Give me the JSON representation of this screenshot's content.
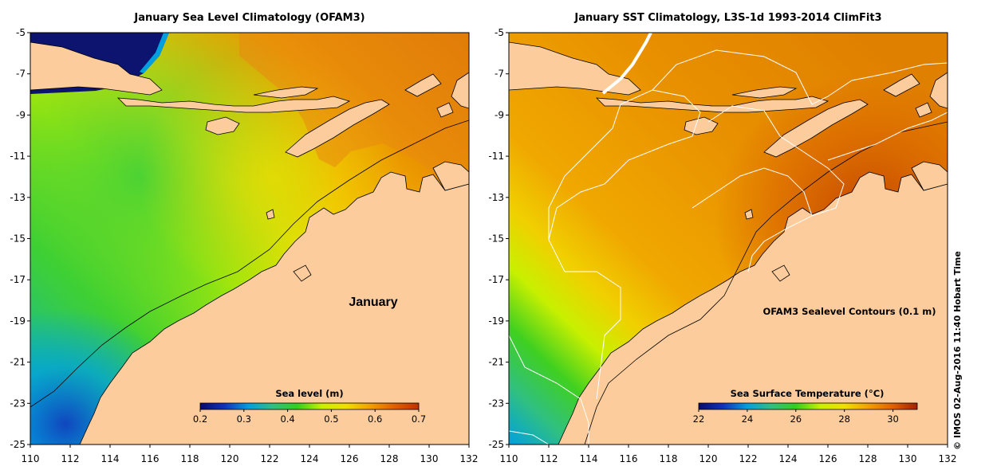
{
  "chart_data": [
    {
      "type": "heatmap",
      "title": "January Sea Level Climatology (OFAM3)",
      "x_ticks": [
        "110",
        "112",
        "114",
        "116",
        "118",
        "120",
        "122",
        "124",
        "126",
        "128",
        "130",
        "132"
      ],
      "y_ticks": [
        "-5",
        "-7",
        "-9",
        "-11",
        "-13",
        "-15",
        "-17",
        "-19",
        "-21",
        "-23",
        "-25"
      ],
      "xlim": [
        110,
        132
      ],
      "ylim": [
        -25,
        -5
      ],
      "annotation": "January",
      "colorbar": {
        "label": "Sea level (m)",
        "range": [
          0.2,
          0.7
        ],
        "ticks": [
          "0.2",
          "0.3",
          "0.4",
          "0.5",
          "0.6",
          "0.7"
        ],
        "colors": [
          "#0a0a6e",
          "#1030c0",
          "#00a0e0",
          "#30c080",
          "#30d020",
          "#c8f000",
          "#f0e000",
          "#f0a000",
          "#e06000",
          "#c03000"
        ]
      }
    },
    {
      "type": "heatmap",
      "title": "January SST Climatology, L3S-1d 1993-2014 ClimFit3",
      "x_ticks": [
        "110",
        "112",
        "114",
        "116",
        "118",
        "120",
        "122",
        "124",
        "126",
        "128",
        "130",
        "132"
      ],
      "y_ticks": [
        "-5",
        "-7",
        "-9",
        "-11",
        "-13",
        "-15",
        "-17",
        "-19",
        "-21",
        "-23",
        "-25"
      ],
      "xlim": [
        110,
        132
      ],
      "ylim": [
        -25,
        -5
      ],
      "annotation": "OFAM3 Sealevel Contours (0.1 m)",
      "colorbar": {
        "label": "Sea Surface Temperature (°C)",
        "range": [
          22,
          31
        ],
        "ticks": [
          "22",
          "24",
          "26",
          "28",
          "30"
        ],
        "colors": [
          "#0a0a6e",
          "#1030c0",
          "#00a0e0",
          "#30c080",
          "#30d020",
          "#c8f000",
          "#f0e000",
          "#f0a000",
          "#e06000",
          "#a02000"
        ]
      }
    }
  ],
  "credit": "© IMOS 02-Aug-2016 11:40 Hobart Time",
  "colors": {
    "land": "#fccc9c",
    "deep_blue": "#0c1470",
    "coast": "#000000"
  }
}
